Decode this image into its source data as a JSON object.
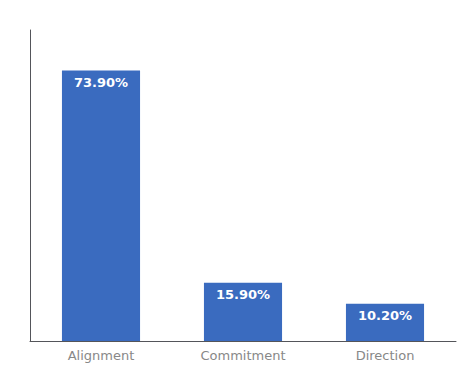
{
  "chart_data": {
    "type": "bar",
    "categories": [
      "Alignment",
      "Commitment",
      "Direction"
    ],
    "values": [
      73.9,
      15.9,
      10.2
    ],
    "value_labels": [
      "73.90%",
      "15.90%",
      "10.20%"
    ],
    "data_labels": true,
    "color": "#3a6bbf",
    "ylim": [
      0,
      85
    ],
    "tick_labels": "x",
    "grid": false
  }
}
